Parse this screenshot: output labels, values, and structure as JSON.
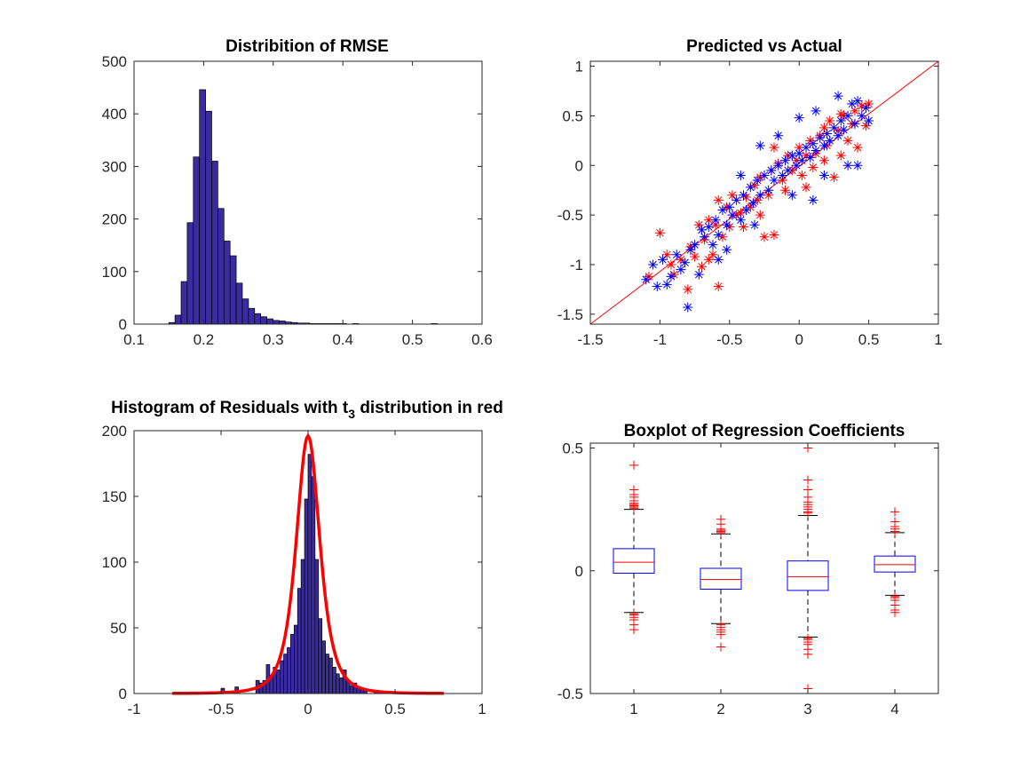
{
  "chart_data": [
    {
      "type": "bar",
      "title": "Distribition of RMSE",
      "xlim": [
        0.1,
        0.6
      ],
      "ylim": [
        0,
        500
      ],
      "xticks": [
        "0.1",
        "0.2",
        "0.3",
        "0.4",
        "0.5",
        "0.6"
      ],
      "yticks": [
        "0",
        "100",
        "200",
        "300",
        "400",
        "500"
      ],
      "bin_width": 0.0088,
      "bin_centers": [
        0.1544,
        0.1632,
        0.172,
        0.1808,
        0.1896,
        0.1984,
        0.2072,
        0.216,
        0.2248,
        0.2336,
        0.2424,
        0.2512,
        0.26,
        0.2688,
        0.2776,
        0.2864,
        0.2952,
        0.304,
        0.3128,
        0.3216,
        0.3304,
        0.3392,
        0.348,
        0.3568,
        0.3656,
        0.3744,
        0.3832,
        0.392,
        0.4008,
        0.4096,
        0.4184,
        0.5312
      ],
      "values": [
        3,
        17,
        81,
        193,
        318,
        446,
        405,
        310,
        220,
        158,
        130,
        78,
        48,
        30,
        20,
        14,
        10,
        7,
        6,
        4,
        3,
        2,
        2,
        1,
        1,
        1,
        1,
        1,
        1,
        0,
        1,
        1
      ],
      "bar_color": "#3c2ba0"
    },
    {
      "type": "scatter",
      "title": "Predicted vs Actual",
      "xlim": [
        -1.5,
        1
      ],
      "ylim": [
        -1.6,
        1.05
      ],
      "xticks": [
        "-1.5",
        "-1",
        "-0.5",
        "0",
        "0.5",
        "1"
      ],
      "yticks": [
        "-1.5",
        "-1",
        "-0.5",
        "0",
        "0.5",
        "1"
      ],
      "reference_line": {
        "x": [
          -1.5,
          1
        ],
        "y": [
          -1.6,
          1.05
        ],
        "color": "#ff0000"
      },
      "series": [
        {
          "color": "#ff0000",
          "marker": "asterisk",
          "points": [
            [
              -1.0,
              -0.68
            ],
            [
              -0.95,
              -0.9
            ],
            [
              -0.9,
              -1.1
            ],
            [
              -0.85,
              -0.95
            ],
            [
              -0.8,
              -1.25
            ],
            [
              -0.78,
              -0.82
            ],
            [
              -0.75,
              -0.92
            ],
            [
              -0.72,
              -0.6
            ],
            [
              -0.7,
              -1.02
            ],
            [
              -0.68,
              -0.75
            ],
            [
              -0.65,
              -0.55
            ],
            [
              -0.62,
              -0.9
            ],
            [
              -0.6,
              -0.6
            ],
            [
              -0.58,
              -1.22
            ],
            [
              -0.55,
              -0.72
            ],
            [
              -0.52,
              -0.42
            ],
            [
              -0.5,
              -0.62
            ],
            [
              -0.48,
              -0.3
            ],
            [
              -0.45,
              -0.5
            ],
            [
              -0.42,
              -0.48
            ],
            [
              -0.4,
              -0.62
            ],
            [
              -0.38,
              -0.32
            ],
            [
              -0.35,
              -0.42
            ],
            [
              -0.32,
              -0.2
            ],
            [
              -0.3,
              -0.35
            ],
            [
              -0.28,
              -0.12
            ],
            [
              -0.25,
              -0.72
            ],
            [
              -0.22,
              -0.3
            ],
            [
              -0.2,
              -0.05
            ],
            [
              -0.18,
              -0.7
            ],
            [
              -0.15,
              0.02
            ],
            [
              -0.12,
              -0.15
            ],
            [
              -0.1,
              -0.25
            ],
            [
              -0.08,
              0.1
            ],
            [
              -0.05,
              -0.05
            ],
            [
              -0.02,
              0.05
            ],
            [
              0.0,
              0.18
            ],
            [
              0.02,
              -0.1
            ],
            [
              0.05,
              0.1
            ],
            [
              0.08,
              0.25
            ],
            [
              0.1,
              -0.02
            ],
            [
              0.12,
              0.12
            ],
            [
              0.15,
              0.3
            ],
            [
              0.18,
              0.05
            ],
            [
              0.2,
              0.2
            ],
            [
              0.22,
              0.45
            ],
            [
              0.25,
              -0.12
            ],
            [
              0.28,
              0.35
            ],
            [
              0.3,
              0.1
            ],
            [
              0.32,
              0.5
            ],
            [
              0.35,
              0.25
            ],
            [
              0.38,
              0.42
            ],
            [
              0.4,
              0.55
            ],
            [
              0.42,
              0.18
            ],
            [
              0.45,
              0.6
            ],
            [
              0.48,
              0.4
            ],
            [
              0.5,
              0.62
            ],
            [
              -1.08,
              -1.12
            ],
            [
              -0.92,
              -1.0
            ],
            [
              -0.58,
              -0.35
            ],
            [
              -0.18,
              0.18
            ],
            [
              0.05,
              -0.22
            ],
            [
              0.18,
              0.38
            ],
            [
              0.3,
              0.52
            ],
            [
              -0.28,
              -0.5
            ],
            [
              -0.65,
              -0.95
            ]
          ]
        },
        {
          "color": "#0000ff",
          "marker": "asterisk",
          "points": [
            [
              -1.1,
              -1.15
            ],
            [
              -1.05,
              -1.0
            ],
            [
              -1.02,
              -1.22
            ],
            [
              -0.98,
              -0.95
            ],
            [
              -0.95,
              -1.2
            ],
            [
              -0.92,
              -1.12
            ],
            [
              -0.88,
              -0.9
            ],
            [
              -0.85,
              -1.05
            ],
            [
              -0.82,
              -0.98
            ],
            [
              -0.8,
              -1.43
            ],
            [
              -0.78,
              -0.85
            ],
            [
              -0.75,
              -0.8
            ],
            [
              -0.72,
              -1.1
            ],
            [
              -0.7,
              -0.65
            ],
            [
              -0.68,
              -0.72
            ],
            [
              -0.65,
              -0.62
            ],
            [
              -0.62,
              -0.8
            ],
            [
              -0.6,
              -0.55
            ],
            [
              -0.58,
              -0.7
            ],
            [
              -0.55,
              -0.45
            ],
            [
              -0.52,
              -0.6
            ],
            [
              -0.5,
              -0.42
            ],
            [
              -0.48,
              -0.5
            ],
            [
              -0.45,
              -0.35
            ],
            [
              -0.42,
              -0.55
            ],
            [
              -0.4,
              -0.3
            ],
            [
              -0.38,
              -0.45
            ],
            [
              -0.35,
              -0.22
            ],
            [
              -0.33,
              -0.38
            ],
            [
              -0.3,
              -0.15
            ],
            [
              -0.28,
              -0.3
            ],
            [
              -0.25,
              -0.1
            ],
            [
              -0.22,
              -0.25
            ],
            [
              -0.2,
              -0.05
            ],
            [
              -0.18,
              -0.15
            ],
            [
              -0.15,
              0.0
            ],
            [
              -0.12,
              -0.1
            ],
            [
              -0.1,
              0.05
            ],
            [
              -0.08,
              -0.05
            ],
            [
              -0.05,
              0.1
            ],
            [
              -0.02,
              0.0
            ],
            [
              0.0,
              0.12
            ],
            [
              0.02,
              0.05
            ],
            [
              0.05,
              0.18
            ],
            [
              0.08,
              0.08
            ],
            [
              0.1,
              0.22
            ],
            [
              0.12,
              0.15
            ],
            [
              0.15,
              0.28
            ],
            [
              0.18,
              0.2
            ],
            [
              0.2,
              0.32
            ],
            [
              0.22,
              0.25
            ],
            [
              0.25,
              0.38
            ],
            [
              0.28,
              0.3
            ],
            [
              0.3,
              0.45
            ],
            [
              0.32,
              0.36
            ],
            [
              0.35,
              0.5
            ],
            [
              0.38,
              0.62
            ],
            [
              0.4,
              0.42
            ],
            [
              0.42,
              0.65
            ],
            [
              0.45,
              0.5
            ],
            [
              0.48,
              0.58
            ],
            [
              0.5,
              0.45
            ],
            [
              -0.32,
              -0.6
            ],
            [
              -0.28,
              0.2
            ],
            [
              0.0,
              0.48
            ],
            [
              -0.15,
              0.3
            ],
            [
              0.12,
              0.55
            ],
            [
              0.28,
              0.7
            ],
            [
              -0.42,
              -0.1
            ],
            [
              0.18,
              -0.1
            ],
            [
              -0.05,
              -0.3
            ],
            [
              0.1,
              -0.35
            ],
            [
              0.35,
              0.0
            ],
            [
              0.42,
              0.0
            ],
            [
              -0.58,
              -0.95
            ],
            [
              -0.52,
              -0.85
            ]
          ]
        }
      ]
    },
    {
      "type": "bar",
      "title": "Histogram of Residuals with t",
      "title_subscript": "3",
      "title_suffix": " distribution in red",
      "xlim": [
        -1,
        1
      ],
      "ylim": [
        0,
        200
      ],
      "xticks": [
        "-1",
        "-0.5",
        "0",
        "0.5",
        "1"
      ],
      "yticks": [
        "0",
        "50",
        "100",
        "150",
        "200"
      ],
      "bin_width": 0.02,
      "bin_centers": [
        -0.49,
        -0.41,
        -0.29,
        -0.27,
        -0.25,
        -0.23,
        -0.21,
        -0.19,
        -0.17,
        -0.15,
        -0.13,
        -0.11,
        -0.09,
        -0.07,
        -0.05,
        -0.03,
        -0.01,
        0.01,
        0.03,
        0.05,
        0.07,
        0.09,
        0.11,
        0.13,
        0.15,
        0.17,
        0.19,
        0.21,
        0.23,
        0.25,
        0.27,
        0.29,
        0.31,
        0.33,
        0.39
      ],
      "values": [
        4,
        5,
        10,
        8,
        10,
        22,
        14,
        20,
        18,
        25,
        30,
        35,
        45,
        52,
        80,
        102,
        148,
        182,
        165,
        102,
        57,
        40,
        30,
        27,
        20,
        15,
        12,
        18,
        10,
        6,
        8,
        5,
        3,
        2,
        1
      ],
      "bar_color": "#3c2ba0",
      "overlay_curve": {
        "color": "#ff0000",
        "label": "t3",
        "peak": 196,
        "scale": 0.072,
        "dof": 3,
        "xrange": [
          -0.78,
          0.78
        ]
      }
    },
    {
      "type": "boxplot",
      "title": "Boxplot of Regression Coefficients",
      "xlim": [
        0.5,
        4.5
      ],
      "ylim": [
        -0.5,
        0.52
      ],
      "xticks": [
        "1",
        "2",
        "3",
        "4"
      ],
      "yticks": [
        "-0.5",
        "0",
        "0.5"
      ],
      "boxes": [
        {
          "category": "1",
          "q1": -0.01,
          "median": 0.035,
          "q3": 0.09,
          "whisker_low": -0.17,
          "whisker_high": 0.25,
          "outliers": [
            0.43,
            0.33,
            0.31,
            0.3,
            0.285,
            0.275,
            0.27,
            0.265,
            0.26,
            0.255,
            -0.175,
            -0.18,
            -0.19,
            -0.2,
            -0.22,
            -0.24
          ]
        },
        {
          "category": "2",
          "q1": -0.075,
          "median": -0.035,
          "q3": 0.01,
          "whisker_low": -0.215,
          "whisker_high": 0.15,
          "outliers": [
            0.21,
            0.19,
            0.17,
            0.165,
            0.16,
            0.155,
            -0.22,
            -0.23,
            -0.24,
            -0.25,
            -0.26,
            -0.31
          ]
        },
        {
          "category": "3",
          "q1": -0.08,
          "median": -0.025,
          "q3": 0.04,
          "whisker_low": -0.27,
          "whisker_high": 0.225,
          "outliers": [
            0.5,
            0.37,
            0.33,
            0.3,
            0.28,
            0.27,
            0.26,
            0.25,
            0.24,
            0.235,
            -0.275,
            -0.28,
            -0.29,
            -0.3,
            -0.32,
            -0.34,
            -0.48
          ]
        },
        {
          "category": "4",
          "q1": -0.005,
          "median": 0.025,
          "q3": 0.06,
          "whisker_low": -0.1,
          "whisker_high": 0.155,
          "outliers": [
            0.24,
            0.2,
            0.18,
            0.17,
            0.16,
            -0.105,
            -0.11,
            -0.12,
            -0.14,
            -0.16,
            -0.17
          ]
        }
      ],
      "box_color": "#0000ff",
      "median_color": "#ff0000",
      "outlier_color": "#ff0000"
    }
  ]
}
